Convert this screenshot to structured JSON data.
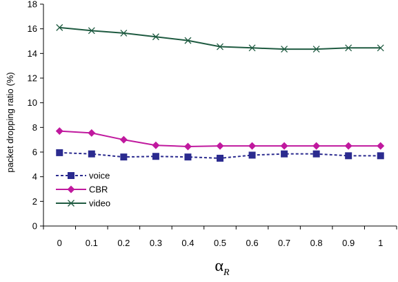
{
  "chart_data": {
    "type": "line",
    "ylabel": "packet dropping ratio (%)",
    "xlabel_symbol": "α",
    "xlabel_subscript": "R",
    "ylim": [
      0,
      18
    ],
    "yticks": [
      "0",
      "2",
      "4",
      "6",
      "8",
      "10",
      "12",
      "14",
      "16",
      "18"
    ],
    "categories": [
      "0",
      "0.1",
      "0.2",
      "0.3",
      "0.4",
      "0.5",
      "0.6",
      "0.7",
      "0.8",
      "0.9",
      "1"
    ],
    "grid": false,
    "legend_position": "lower-left",
    "series": [
      {
        "name": "voice",
        "color": "#2b2b8f",
        "marker": "square",
        "line_style": "dashed",
        "values": [
          5.95,
          5.85,
          5.6,
          5.65,
          5.6,
          5.5,
          5.75,
          5.85,
          5.85,
          5.7,
          5.7
        ]
      },
      {
        "name": "CBR",
        "color": "#c0199e",
        "marker": "diamond",
        "line_style": "solid",
        "values": [
          7.7,
          7.55,
          7.0,
          6.55,
          6.45,
          6.5,
          6.5,
          6.5,
          6.5,
          6.5,
          6.5
        ]
      },
      {
        "name": "video",
        "color": "#1e5a40",
        "marker": "x",
        "line_style": "solid",
        "values": [
          16.1,
          15.85,
          15.65,
          15.35,
          15.05,
          14.55,
          14.45,
          14.35,
          14.35,
          14.45,
          14.45
        ]
      }
    ]
  }
}
